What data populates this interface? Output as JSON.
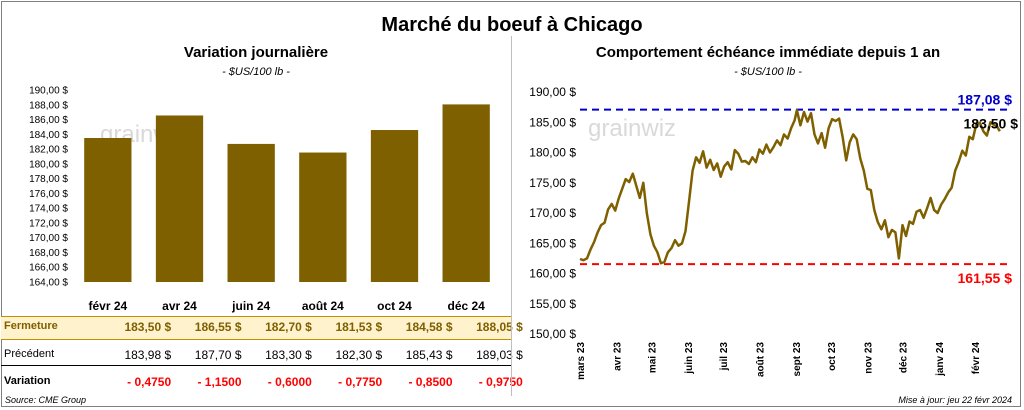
{
  "title": "Marché du boeuf à Chicago",
  "left": {
    "title": "Variation  journalière",
    "subtitle": "- $US/100 lb -",
    "watermark": "grainwiz",
    "table": {
      "labels": {
        "fermeture": "Fermeture",
        "precedent": "Précédent",
        "variation": "Variation"
      },
      "fermeture": [
        "183,50  $",
        "186,55  $",
        "182,70  $",
        "181,53  $",
        "184,58  $",
        "188,05  $"
      ],
      "precedent": [
        "183,98  $",
        "187,70  $",
        "183,30  $",
        "182,30  $",
        "185,43  $",
        "189,03  $"
      ],
      "variation": [
        "- 0,4750",
        "- 1,1500",
        "- 0,6000",
        "- 0,7750",
        "- 0,8500",
        "- 0,9750"
      ]
    },
    "colors": {
      "bar": "#7f6000",
      "band": "#fff2cc",
      "band_border": "#bf9000",
      "negative": "#ff0000"
    }
  },
  "right": {
    "title": "Comportement  échéance immédiate depuis 1 an",
    "subtitle": "- $US/100 lb -",
    "watermark": "grainwiz",
    "colors": {
      "line": "#7f6000",
      "max": "#0000cc",
      "min": "#ff0000"
    }
  },
  "footer": {
    "source": "Source: CME Group",
    "updated": "Mise à jour: jeu 22 févr 2024"
  },
  "chart_data": [
    {
      "type": "bar",
      "title": "Variation  journalière",
      "categories": [
        "févr 24",
        "avr 24",
        "juin 24",
        "août 24",
        "oct 24",
        "déc 24"
      ],
      "values": [
        183.5,
        186.55,
        182.7,
        181.53,
        184.58,
        188.05
      ],
      "ylim": [
        164,
        190
      ],
      "ytick_step": 2,
      "ytick_labels": [
        "164,00 $",
        "166,00 $",
        "168,00 $",
        "170,00 $",
        "172,00 $",
        "174,00 $",
        "176,00 $",
        "178,00 $",
        "180,00 $",
        "182,00 $",
        "184,00 $",
        "186,00 $",
        "188,00 $",
        "190,00 $"
      ],
      "grid": false
    },
    {
      "type": "line",
      "title": "Comportement  échéance immédiate depuis 1 an",
      "x_start": "2023-03-01",
      "x_end": "2024-02-29",
      "xtick_labels": [
        "mars 23",
        "avr 23",
        "mai 23",
        "juin 23",
        "juil 23",
        "août 23",
        "sept 23",
        "oct 23",
        "nov 23",
        "déc 23",
        "janv 24",
        "févr 24"
      ],
      "ylim": [
        150,
        190
      ],
      "ytick_labels": [
        "150,00 $",
        "155,00 $",
        "160,00 $",
        "165,00 $",
        "170,00 $",
        "175,00 $",
        "180,00 $",
        "185,00 $",
        "190,00 $"
      ],
      "series": [
        {
          "points": [
            [
              "2023-03-01",
              162.4
            ],
            [
              "2023-03-04",
              162.2
            ],
            [
              "2023-03-07",
              162.5
            ],
            [
              "2023-03-10",
              164.0
            ],
            [
              "2023-03-13",
              165.2
            ],
            [
              "2023-03-16",
              166.8
            ],
            [
              "2023-03-19",
              168.0
            ],
            [
              "2023-03-22",
              168.4
            ],
            [
              "2023-03-25",
              170.6
            ],
            [
              "2023-03-28",
              171.5
            ],
            [
              "2023-03-31",
              170.4
            ],
            [
              "2023-04-03",
              172.4
            ],
            [
              "2023-04-06",
              174.0
            ],
            [
              "2023-04-09",
              175.6
            ],
            [
              "2023-04-12",
              175.1
            ],
            [
              "2023-04-15",
              176.5
            ],
            [
              "2023-04-18",
              174.5
            ],
            [
              "2023-04-21",
              172.5
            ],
            [
              "2023-04-24",
              175.0
            ],
            [
              "2023-04-27",
              170.0
            ],
            [
              "2023-04-30",
              166.5
            ],
            [
              "2023-05-03",
              164.6
            ],
            [
              "2023-05-06",
              163.5
            ],
            [
              "2023-05-09",
              161.7
            ],
            [
              "2023-05-12",
              161.9
            ],
            [
              "2023-05-15",
              163.5
            ],
            [
              "2023-05-18",
              164.2
            ],
            [
              "2023-05-21",
              165.5
            ],
            [
              "2023-05-24",
              164.6
            ],
            [
              "2023-05-27",
              165.0
            ],
            [
              "2023-05-30",
              167.0
            ],
            [
              "2023-06-02",
              172.0
            ],
            [
              "2023-06-05",
              177.0
            ],
            [
              "2023-06-08",
              179.2
            ],
            [
              "2023-06-11",
              178.3
            ],
            [
              "2023-06-14",
              180.2
            ],
            [
              "2023-06-17",
              177.5
            ],
            [
              "2023-06-20",
              178.8
            ],
            [
              "2023-06-23",
              177.1
            ],
            [
              "2023-06-26",
              178.2
            ],
            [
              "2023-06-29",
              176.0
            ],
            [
              "2023-07-02",
              177.7
            ],
            [
              "2023-07-05",
              178.4
            ],
            [
              "2023-07-08",
              177.2
            ],
            [
              "2023-07-11",
              180.4
            ],
            [
              "2023-07-14",
              179.8
            ],
            [
              "2023-07-17",
              178.5
            ],
            [
              "2023-07-20",
              178.6
            ],
            [
              "2023-07-23",
              178.1
            ],
            [
              "2023-07-26",
              179.2
            ],
            [
              "2023-07-29",
              178.4
            ],
            [
              "2023-08-01",
              180.5
            ],
            [
              "2023-08-04",
              179.8
            ],
            [
              "2023-08-07",
              181.3
            ],
            [
              "2023-08-10",
              180.0
            ],
            [
              "2023-08-13",
              180.9
            ],
            [
              "2023-08-16",
              182.0
            ],
            [
              "2023-08-19",
              181.2
            ],
            [
              "2023-08-22",
              183.0
            ],
            [
              "2023-08-25",
              182.3
            ],
            [
              "2023-08-28",
              184.0
            ],
            [
              "2023-08-31",
              185.3
            ],
            [
              "2023-09-02",
              187.0
            ],
            [
              "2023-09-05",
              184.5
            ],
            [
              "2023-09-08",
              186.7
            ],
            [
              "2023-09-11",
              185.1
            ],
            [
              "2023-09-14",
              186.5
            ],
            [
              "2023-09-17",
              183.0
            ],
            [
              "2023-09-20",
              181.5
            ],
            [
              "2023-09-23",
              183.2
            ],
            [
              "2023-09-26",
              180.8
            ],
            [
              "2023-09-29",
              184.0
            ],
            [
              "2023-10-02",
              185.5
            ],
            [
              "2023-10-05",
              185.2
            ],
            [
              "2023-10-08",
              185.6
            ],
            [
              "2023-10-11",
              182.5
            ],
            [
              "2023-10-14",
              178.7
            ],
            [
              "2023-10-17",
              181.7
            ],
            [
              "2023-10-20",
              183.0
            ],
            [
              "2023-10-23",
              182.2
            ],
            [
              "2023-10-26",
              179.0
            ],
            [
              "2023-10-29",
              177.0
            ],
            [
              "2023-11-01",
              174.0
            ],
            [
              "2023-11-04",
              173.8
            ],
            [
              "2023-11-07",
              170.5
            ],
            [
              "2023-11-10",
              168.5
            ],
            [
              "2023-11-13",
              167.3
            ],
            [
              "2023-11-16",
              168.8
            ],
            [
              "2023-11-19",
              166.0
            ],
            [
              "2023-11-22",
              167.2
            ],
            [
              "2023-11-25",
              166.8
            ],
            [
              "2023-11-28",
              162.5
            ],
            [
              "2023-12-01",
              168.0
            ],
            [
              "2023-12-04",
              166.2
            ],
            [
              "2023-12-07",
              168.6
            ],
            [
              "2023-12-10",
              168.2
            ],
            [
              "2023-12-13",
              170.2
            ],
            [
              "2023-12-16",
              170.5
            ],
            [
              "2023-12-19",
              169.2
            ],
            [
              "2023-12-22",
              170.8
            ],
            [
              "2023-12-25",
              172.5
            ],
            [
              "2023-12-28",
              170.5
            ],
            [
              "2023-12-31",
              170.0
            ],
            [
              "2024-01-03",
              171.4
            ],
            [
              "2024-01-06",
              172.3
            ],
            [
              "2024-01-09",
              173.4
            ],
            [
              "2024-01-12",
              174.2
            ],
            [
              "2024-01-15",
              177.0
            ],
            [
              "2024-01-18",
              178.5
            ],
            [
              "2024-01-21",
              180.3
            ],
            [
              "2024-01-24",
              179.5
            ],
            [
              "2024-01-27",
              182.6
            ],
            [
              "2024-01-30",
              182.2
            ],
            [
              "2024-02-02",
              184.7
            ],
            [
              "2024-02-05",
              184.9
            ],
            [
              "2024-02-08",
              183.5
            ],
            [
              "2024-02-11",
              182.8
            ],
            [
              "2024-02-14",
              185.0
            ],
            [
              "2024-02-17",
              184.6
            ],
            [
              "2024-02-20",
              184.2
            ],
            [
              "2024-02-22",
              183.5
            ]
          ]
        }
      ],
      "reference_lines": [
        {
          "label": "187,08 $",
          "value": 187.08
        },
        {
          "label": "161,55 $",
          "value": 161.55
        }
      ],
      "last_label": "183,50 $",
      "last_value": 183.5,
      "grid": false
    }
  ]
}
